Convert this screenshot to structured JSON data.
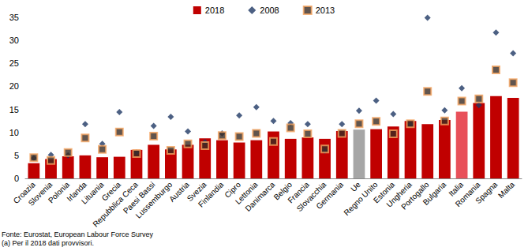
{
  "chart_data": {
    "type": "bar",
    "categories": [
      "Croazia",
      "Slovenia",
      "Polonia",
      "Irlanda",
      "Lituania",
      "Grecia",
      "Repubblica Ceca",
      "Paesi Bassi",
      "Lussemburgo",
      "Austria",
      "Svezia",
      "Finlandia",
      "Cipro",
      "Lettonia",
      "Danimarca",
      "Belgio",
      "Francia",
      "Slovacchia",
      "Germania",
      "Ue",
      "Regno Unito",
      "Estonia",
      "Ungheria",
      "Portogallo",
      "Bulgaria",
      "Italia",
      "Romania",
      "Spagna",
      "Malta"
    ],
    "series": [
      {
        "name": "2018",
        "type": "bar",
        "color": "#C00000",
        "colors": [
          "#C00000",
          "#C00000",
          "#C00000",
          "#C00000",
          "#C00000",
          "#C00000",
          "#C00000",
          "#C00000",
          "#C00000",
          "#C00000",
          "#C00000",
          "#C00000",
          "#C00000",
          "#C00000",
          "#C00000",
          "#C00000",
          "#C00000",
          "#C00000",
          "#C00000",
          "#A6A6A6",
          "#C00000",
          "#C00000",
          "#C00000",
          "#C00000",
          "#C00000",
          "#E8505A",
          "#C00000",
          "#C00000",
          "#C00000"
        ],
        "values": [
          3.3,
          4.2,
          4.8,
          5.0,
          4.6,
          4.7,
          6.2,
          7.3,
          6.3,
          7.3,
          8.7,
          8.3,
          7.8,
          8.3,
          10.2,
          8.6,
          8.9,
          8.6,
          10.3,
          10.6,
          10.7,
          11.3,
          12.5,
          11.8,
          12.7,
          14.5,
          16.4,
          17.9,
          17.5
        ]
      },
      {
        "name": "2008",
        "type": "scatter",
        "marker": "diamond",
        "color": "#1F3864",
        "values": [
          4.4,
          5.1,
          5.0,
          11.8,
          7.5,
          14.4,
          5.6,
          11.4,
          13.4,
          10.2,
          7.9,
          9.8,
          13.7,
          15.5,
          12.5,
          12.0,
          11.8,
          6.0,
          11.8,
          14.7,
          16.9,
          14.0,
          11.7,
          34.9,
          14.8,
          19.6,
          15.9,
          31.7,
          27.2
        ]
      },
      {
        "name": "2013",
        "type": "scatter",
        "marker": "square",
        "color": "#3A2A22",
        "values": [
          4.5,
          3.9,
          5.6,
          8.8,
          6.3,
          10.1,
          5.4,
          9.2,
          6.1,
          7.5,
          7.1,
          9.3,
          9.1,
          9.8,
          8.0,
          11.0,
          9.7,
          6.4,
          9.8,
          11.9,
          12.4,
          9.7,
          11.9,
          18.9,
          12.5,
          16.8,
          17.3,
          23.6,
          20.8
        ]
      }
    ],
    "ylim": [
      0,
      35
    ],
    "yticks": [
      0,
      5,
      10,
      15,
      20,
      25,
      30,
      35
    ],
    "grid": false,
    "legend": "top",
    "annotations": [
      "Fonte: Eurostat, European Labour Force Survey",
      "(a) Per il 2018 dati provvisori."
    ]
  }
}
